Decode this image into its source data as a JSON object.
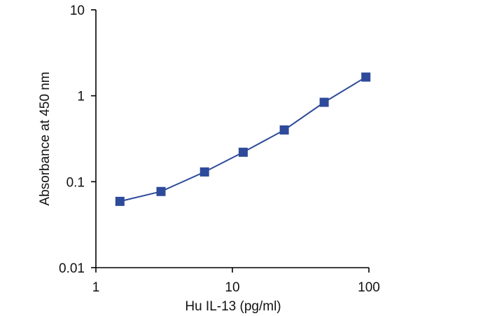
{
  "chart_data": {
    "type": "line",
    "title": "",
    "xlabel": "Hu IL-13 (pg/ml)",
    "ylabel": "Absorbance at 450 nm",
    "x_scale": "log",
    "y_scale": "log",
    "xlim": [
      1,
      100
    ],
    "ylim": [
      0.01,
      10
    ],
    "x_ticks": [
      {
        "value": 1,
        "label": "1"
      },
      {
        "value": 10,
        "label": "10"
      },
      {
        "value": 100,
        "label": "100"
      }
    ],
    "y_ticks": [
      {
        "value": 0.01,
        "label": "0.01"
      },
      {
        "value": 0.1,
        "label": "0.1"
      },
      {
        "value": 1,
        "label": "1"
      },
      {
        "value": 10,
        "label": "10"
      }
    ],
    "grid": false,
    "series": [
      {
        "color": "#2e4a9a",
        "marker": "square",
        "x": [
          1.5,
          3,
          6.25,
          12,
          24,
          47,
          95
        ],
        "y": [
          0.059,
          0.077,
          0.13,
          0.22,
          0.4,
          0.84,
          1.65
        ]
      }
    ]
  }
}
